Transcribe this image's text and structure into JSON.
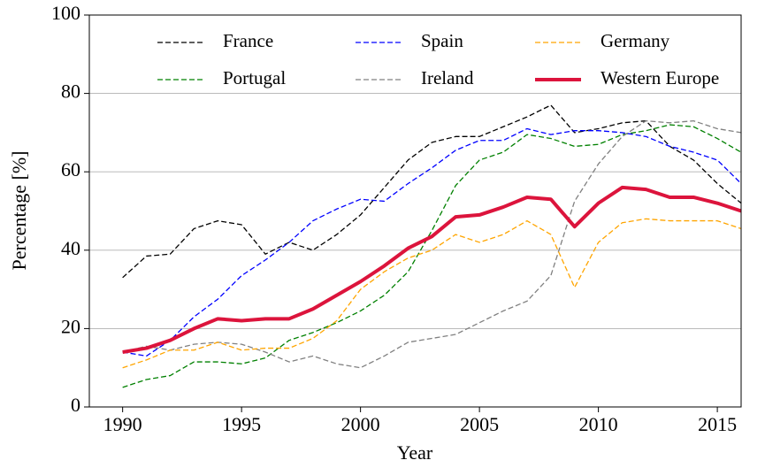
{
  "chart_data": {
    "type": "line",
    "x_label": "Year",
    "y_label": "Percentage [%]",
    "x": [
      1990,
      1991,
      1992,
      1993,
      1994,
      1995,
      1996,
      1997,
      1998,
      1999,
      2000,
      2001,
      2002,
      2003,
      2004,
      2005,
      2006,
      2007,
      2008,
      2009,
      2010,
      2011,
      2012,
      2013,
      2014,
      2015,
      2016
    ],
    "xlim": [
      1988.6,
      2016
    ],
    "xticks": [
      1990,
      1995,
      2000,
      2005,
      2010,
      2015
    ],
    "ylim": [
      0,
      100
    ],
    "yticks": [
      0,
      20,
      40,
      60,
      80,
      100
    ],
    "grid": "y",
    "legend": "upper center",
    "legend_columns": 3,
    "series": [
      {
        "name": "France",
        "color": "#000000",
        "linestyle": "dashed",
        "values": [
          33,
          38.5,
          39,
          45.5,
          47.5,
          46.5,
          39,
          42,
          40,
          44,
          49,
          56,
          63,
          67.5,
          69,
          69,
          71.5,
          74,
          77,
          70,
          71,
          72.5,
          73,
          66.5,
          63,
          57,
          52
        ]
      },
      {
        "name": "Portugal",
        "color": "#008000",
        "linestyle": "dashed",
        "values": [
          5,
          7,
          8,
          11.5,
          11.5,
          11,
          12.5,
          17,
          19,
          21.5,
          24.5,
          28.5,
          34.5,
          45,
          56.5,
          63,
          65,
          69.5,
          68.5,
          66.5,
          67,
          69.5,
          70.5,
          72,
          71.5,
          68.5,
          65
        ]
      },
      {
        "name": "Spain",
        "color": "#0000ff",
        "linestyle": "dashed",
        "values": [
          14,
          13,
          17,
          23,
          27.5,
          33.5,
          37.5,
          42,
          47.5,
          50.5,
          53,
          52.5,
          57,
          61,
          65.5,
          68,
          68,
          71,
          69.5,
          70.5,
          70.5,
          70,
          69,
          66.5,
          65,
          63,
          57
        ]
      },
      {
        "name": "Ireland",
        "color": "#808080",
        "linestyle": "dashed",
        "values": [
          14,
          15.5,
          14.5,
          16,
          16.5,
          16,
          14,
          11.5,
          13,
          11,
          10,
          13,
          16.5,
          17.5,
          18.5,
          21.5,
          24.5,
          27,
          33.5,
          52.5,
          62,
          69,
          73,
          72.5,
          73,
          71,
          70
        ]
      },
      {
        "name": "Germany",
        "color": "#ffa500",
        "linestyle": "dashed",
        "values": [
          10,
          12,
          14.5,
          14.5,
          16.5,
          14.5,
          15,
          15,
          17.5,
          22,
          30,
          34.5,
          38,
          40,
          44,
          42,
          44,
          47.5,
          44,
          30.5,
          42,
          47,
          48,
          47.5,
          47.5,
          47.5,
          45.5
        ]
      },
      {
        "name": "Western Europe",
        "color": "#dc143c",
        "linestyle": "solid",
        "values": [
          14,
          15,
          17,
          20,
          22.5,
          22,
          22.5,
          22.5,
          25,
          28.5,
          32,
          36,
          40.5,
          43.5,
          48.5,
          49,
          51,
          53.5,
          53,
          46,
          52,
          56,
          55.5,
          53.5,
          53.5,
          52,
          50
        ]
      }
    ]
  }
}
